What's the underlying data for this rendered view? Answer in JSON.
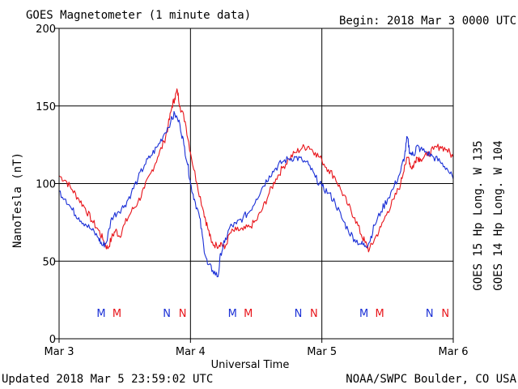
{
  "header": {
    "title": "GOES Magnetometer (1 minute data)",
    "begin": "Begin:  2018 Mar 3 0000 UTC"
  },
  "footer": {
    "updated": "Updated 2018 Mar  5 23:59:02 UTC",
    "credit": "NOAA/SWPC Boulder, CO USA"
  },
  "chart_data": {
    "type": "line",
    "ylabel": "NanoTesla (nT)",
    "xlabel": "Universal Time",
    "ylim": [
      0,
      200
    ],
    "xlim_days": [
      0,
      3
    ],
    "y_ticks": [
      0,
      50,
      100,
      150,
      200
    ],
    "x_ticks": [
      {
        "day": 0,
        "label": "Mar 3"
      },
      {
        "day": 1,
        "label": "Mar 4"
      },
      {
        "day": 2,
        "label": "Mar 5"
      },
      {
        "day": 3,
        "label": "Mar 6"
      }
    ],
    "grid": true,
    "legend_placement": "right, vertical",
    "series": [
      {
        "name": "GOES 15 Hp  Long. W 135",
        "color": "#e8141a",
        "points": [
          [
            0.0,
            105
          ],
          [
            0.05,
            102
          ],
          [
            0.1,
            96
          ],
          [
            0.15,
            90
          ],
          [
            0.2,
            84
          ],
          [
            0.25,
            76
          ],
          [
            0.3,
            70
          ],
          [
            0.34,
            63
          ],
          [
            0.37,
            58
          ],
          [
            0.4,
            65
          ],
          [
            0.43,
            70
          ],
          [
            0.46,
            66
          ],
          [
            0.5,
            74
          ],
          [
            0.55,
            82
          ],
          [
            0.6,
            88
          ],
          [
            0.65,
            97
          ],
          [
            0.7,
            107
          ],
          [
            0.75,
            117
          ],
          [
            0.8,
            127
          ],
          [
            0.83,
            137
          ],
          [
            0.86,
            150
          ],
          [
            0.88,
            155
          ],
          [
            0.9,
            160
          ],
          [
            0.92,
            150
          ],
          [
            0.96,
            140
          ],
          [
            1.0,
            120
          ],
          [
            1.05,
            100
          ],
          [
            1.1,
            82
          ],
          [
            1.13,
            72
          ],
          [
            1.16,
            62
          ],
          [
            1.2,
            60
          ],
          [
            1.23,
            62
          ],
          [
            1.26,
            58
          ],
          [
            1.3,
            68
          ],
          [
            1.35,
            70
          ],
          [
            1.4,
            70
          ],
          [
            1.45,
            72
          ],
          [
            1.5,
            76
          ],
          [
            1.55,
            84
          ],
          [
            1.6,
            94
          ],
          [
            1.65,
            103
          ],
          [
            1.7,
            110
          ],
          [
            1.75,
            116
          ],
          [
            1.8,
            120
          ],
          [
            1.85,
            123
          ],
          [
            1.9,
            124
          ],
          [
            1.95,
            120
          ],
          [
            2.0,
            115
          ],
          [
            2.05,
            109
          ],
          [
            2.1,
            104
          ],
          [
            2.15,
            95
          ],
          [
            2.2,
            86
          ],
          [
            2.25,
            78
          ],
          [
            2.3,
            67
          ],
          [
            2.33,
            62
          ],
          [
            2.36,
            57
          ],
          [
            2.4,
            64
          ],
          [
            2.45,
            72
          ],
          [
            2.5,
            82
          ],
          [
            2.55,
            90
          ],
          [
            2.6,
            100
          ],
          [
            2.63,
            112
          ],
          [
            2.66,
            117
          ],
          [
            2.68,
            110
          ],
          [
            2.7,
            112
          ],
          [
            2.72,
            117
          ],
          [
            2.75,
            116
          ],
          [
            2.8,
            118
          ],
          [
            2.85,
            122
          ],
          [
            2.9,
            124
          ],
          [
            2.95,
            122
          ],
          [
            3.0,
            117
          ]
        ]
      },
      {
        "name": "GOES 14 Hp  Long. W 104",
        "color": "#1a2fd6",
        "points": [
          [
            0.0,
            95
          ],
          [
            0.05,
            90
          ],
          [
            0.1,
            83
          ],
          [
            0.15,
            78
          ],
          [
            0.2,
            74
          ],
          [
            0.25,
            70
          ],
          [
            0.3,
            65
          ],
          [
            0.33,
            60
          ],
          [
            0.36,
            62
          ],
          [
            0.4,
            78
          ],
          [
            0.45,
            82
          ],
          [
            0.5,
            86
          ],
          [
            0.55,
            94
          ],
          [
            0.6,
            103
          ],
          [
            0.65,
            112
          ],
          [
            0.7,
            118
          ],
          [
            0.75,
            124
          ],
          [
            0.8,
            132
          ],
          [
            0.85,
            140
          ],
          [
            0.88,
            145
          ],
          [
            0.92,
            138
          ],
          [
            0.95,
            125
          ],
          [
            0.98,
            112
          ],
          [
            1.0,
            100
          ],
          [
            1.03,
            90
          ],
          [
            1.07,
            78
          ],
          [
            1.1,
            60
          ],
          [
            1.13,
            48
          ],
          [
            1.17,
            44
          ],
          [
            1.21,
            40
          ],
          [
            1.23,
            55
          ],
          [
            1.26,
            62
          ],
          [
            1.3,
            72
          ],
          [
            1.35,
            74
          ],
          [
            1.4,
            78
          ],
          [
            1.45,
            82
          ],
          [
            1.5,
            90
          ],
          [
            1.55,
            98
          ],
          [
            1.6,
            105
          ],
          [
            1.65,
            110
          ],
          [
            1.7,
            114
          ],
          [
            1.75,
            116
          ],
          [
            1.8,
            117
          ],
          [
            1.85,
            115
          ],
          [
            1.9,
            112
          ],
          [
            1.95,
            104
          ],
          [
            2.0,
            98
          ],
          [
            2.05,
            94
          ],
          [
            2.1,
            88
          ],
          [
            2.15,
            78
          ],
          [
            2.2,
            70
          ],
          [
            2.25,
            64
          ],
          [
            2.3,
            61
          ],
          [
            2.33,
            60
          ],
          [
            2.36,
            62
          ],
          [
            2.4,
            73
          ],
          [
            2.45,
            82
          ],
          [
            2.5,
            90
          ],
          [
            2.55,
            98
          ],
          [
            2.6,
            108
          ],
          [
            2.63,
            118
          ],
          [
            2.65,
            130
          ],
          [
            2.67,
            120
          ],
          [
            2.7,
            118
          ],
          [
            2.72,
            124
          ],
          [
            2.75,
            122
          ],
          [
            2.8,
            120
          ],
          [
            2.85,
            117
          ],
          [
            2.9,
            114
          ],
          [
            2.95,
            110
          ],
          [
            3.0,
            103
          ]
        ]
      }
    ],
    "annotations": [
      {
        "text": "M",
        "day": 0.32,
        "series": 1
      },
      {
        "text": "M",
        "day": 0.44,
        "series": 0
      },
      {
        "text": "N",
        "day": 0.82,
        "series": 1
      },
      {
        "text": "N",
        "day": 0.94,
        "series": 0
      },
      {
        "text": "M",
        "day": 1.32,
        "series": 1
      },
      {
        "text": "M",
        "day": 1.44,
        "series": 0
      },
      {
        "text": "N",
        "day": 1.82,
        "series": 1
      },
      {
        "text": "N",
        "day": 1.94,
        "series": 0
      },
      {
        "text": "M",
        "day": 2.32,
        "series": 1
      },
      {
        "text": "M",
        "day": 2.44,
        "series": 0
      },
      {
        "text": "N",
        "day": 2.82,
        "series": 1
      },
      {
        "text": "N",
        "day": 2.94,
        "series": 0
      }
    ]
  }
}
